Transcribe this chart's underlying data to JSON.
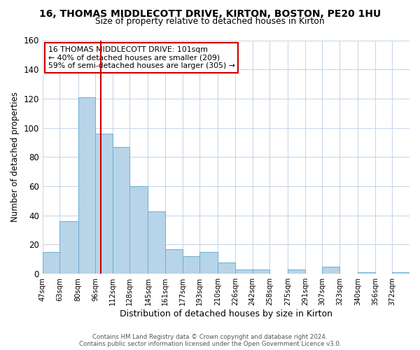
{
  "title": "16, THOMAS MIDDLECOTT DRIVE, KIRTON, BOSTON, PE20 1HU",
  "subtitle": "Size of property relative to detached houses in Kirton",
  "xlabel": "Distribution of detached houses by size in Kirton",
  "ylabel": "Number of detached properties",
  "bar_color": "#b8d4e8",
  "bar_edge_color": "#6aafd6",
  "marker_line_color": "#cc0000",
  "marker_value": 101,
  "categories": [
    "47sqm",
    "63sqm",
    "80sqm",
    "96sqm",
    "112sqm",
    "128sqm",
    "145sqm",
    "161sqm",
    "177sqm",
    "193sqm",
    "210sqm",
    "226sqm",
    "242sqm",
    "258sqm",
    "275sqm",
    "291sqm",
    "307sqm",
    "323sqm",
    "340sqm",
    "356sqm",
    "372sqm"
  ],
  "bin_edges": [
    47,
    63,
    80,
    96,
    112,
    128,
    145,
    161,
    177,
    193,
    210,
    226,
    242,
    258,
    275,
    291,
    307,
    323,
    340,
    356,
    372,
    388
  ],
  "bar_heights": [
    15,
    36,
    121,
    96,
    87,
    60,
    43,
    17,
    12,
    15,
    8,
    3,
    3,
    0,
    3,
    0,
    5,
    0,
    1,
    0,
    1
  ],
  "ylim": [
    0,
    160
  ],
  "yticks": [
    0,
    20,
    40,
    60,
    80,
    100,
    120,
    140,
    160
  ],
  "annotation_title": "16 THOMAS MIDDLECOTT DRIVE: 101sqm",
  "annotation_line1": "← 40% of detached houses are smaller (209)",
  "annotation_line2": "59% of semi-detached houses are larger (305) →",
  "annotation_box_color": "#ffffff",
  "annotation_box_edgecolor": "#cc0000",
  "footnote1": "Contains HM Land Registry data © Crown copyright and database right 2024.",
  "footnote2": "Contains public sector information licensed under the Open Government Licence v3.0.",
  "background_color": "#ffffff",
  "grid_color": "#c8d8e8"
}
